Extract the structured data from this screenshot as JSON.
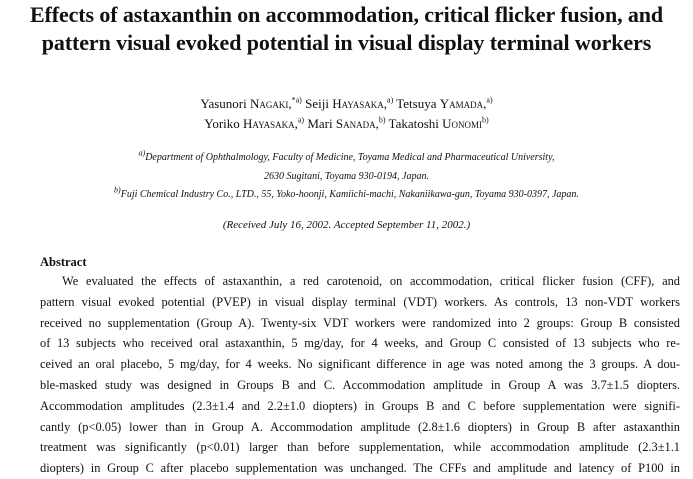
{
  "title": {
    "line1": "Effects of astaxanthin on accommodation, critical flicker fusion, and",
    "line2": "pattern visual evoked potential in visual display terminal workers"
  },
  "authors": [
    {
      "first": "Yasunori",
      "last": "Nagaki,",
      "aff": "*a)"
    },
    {
      "first": "Seiji",
      "last": "Hayasaka,",
      "aff": "a)"
    },
    {
      "first": "Tetsuya",
      "last": "Yamada,",
      "aff": "a)"
    },
    {
      "first": "Yoriko",
      "last": "Hayasaka,",
      "aff": "a)"
    },
    {
      "first": "Mari",
      "last": "Sanada,",
      "aff": "b)"
    },
    {
      "first": "Takatoshi",
      "last": "Uonomi",
      "aff": "b)"
    }
  ],
  "affiliations": {
    "a_mark": "a)",
    "a_line1": "Department of Ophthalmology, Faculty of Medicine, Toyama Medical and Pharmaceutical University,",
    "a_line2": "2630 Sugitani, Toyama 930-0194, Japan.",
    "b_mark": "b)",
    "b_line1": "Fuji Chemical Industry Co., LTD., 55, Yoko-hoonji, Kamiichi-machi, Nakaniikawa-gun, Toyama 930-0397, Japan."
  },
  "received": "(Received July 16, 2002. Accepted September 11, 2002.)",
  "abstract": {
    "heading": "Abstract",
    "lines": [
      "We evaluated the effects of astaxanthin, a red carotenoid, on accommodation, critical flicker fusion (CFF), and",
      "pattern visual evoked potential (PVEP) in visual display terminal (VDT) workers. As controls, 13 non-VDT workers",
      "received no supplementation (Group A). Twenty-six VDT workers were randomized into 2 groups: Group B consisted",
      "of 13 subjects who received oral astaxanthin, 5 mg/day, for 4 weeks, and Group C consisted of 13 subjects who re-",
      "ceived an oral placebo, 5 mg/day, for 4 weeks.  No significant difference in age was noted among the 3 groups.  A dou-",
      "ble-masked study was designed in Groups B and C. Accommodation amplitude in Group A was 3.7±1.5 diopters.",
      "Accommodation amplitudes (2.3±1.4 and 2.2±1.0 diopters) in Groups B and C before supplementation were signifi-",
      "cantly (p<0.05) lower than in Group A. Accommodation amplitude (2.8±1.6 diopters) in Group B after astaxanthin",
      "treatment was significantly (p<0.01) larger than before supplementation, while accommodation amplitude (2.3±1.1",
      "diopters) in Group C after placebo supplementation was unchanged. The CFFs and amplitude and latency of P100 in"
    ]
  }
}
